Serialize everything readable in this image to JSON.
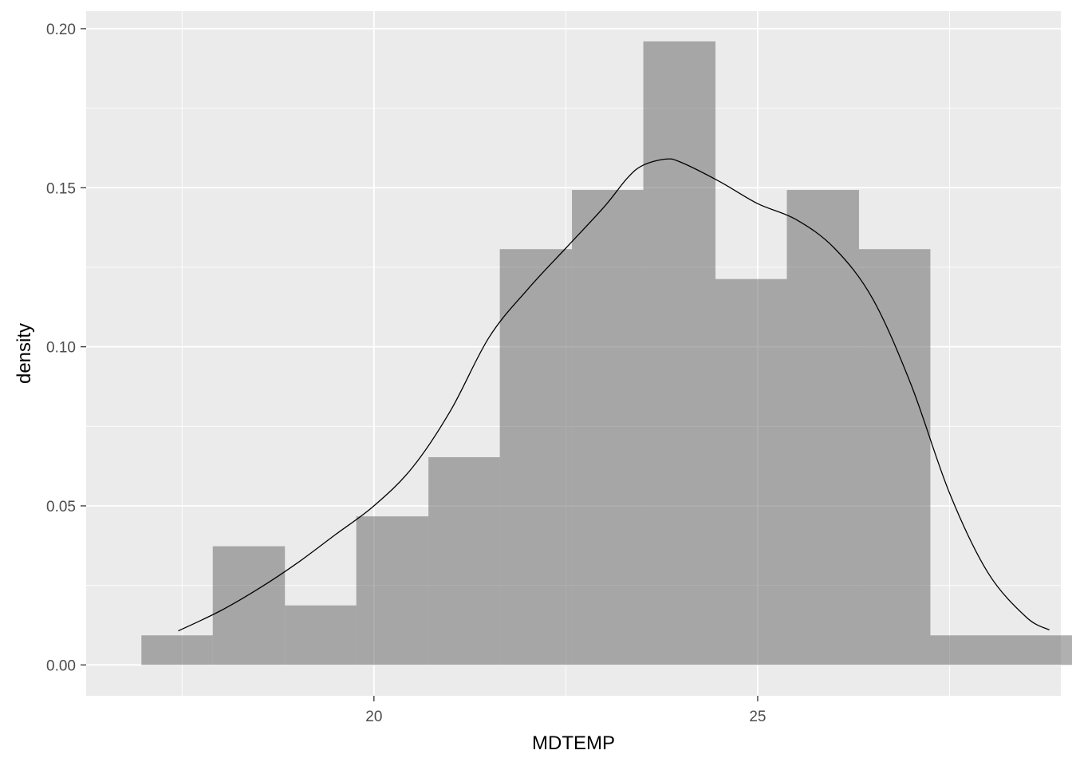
{
  "chart_data": {
    "type": "bar",
    "xlabel": "MDTEMP",
    "ylabel": "density",
    "xlim": [
      16.25,
      28.95
    ],
    "ylim": [
      -0.0097,
      0.2055
    ],
    "x_ticks": [
      20,
      25
    ],
    "x_minor_ticks": [
      17.5,
      22.5,
      27.5
    ],
    "y_ticks": [
      0.0,
      0.05,
      0.1,
      0.15,
      0.2
    ],
    "y_tick_labels": [
      "0.00",
      "0.05",
      "0.10",
      "0.15",
      "0.20"
    ],
    "grid": true,
    "legend": "none",
    "histogram": {
      "bins": [
        {
          "x0": 16.97,
          "x1": 17.9,
          "density": 0.0093
        },
        {
          "x0": 17.9,
          "x1": 18.84,
          "density": 0.0373
        },
        {
          "x0": 18.84,
          "x1": 19.77,
          "density": 0.0187
        },
        {
          "x0": 19.77,
          "x1": 20.71,
          "density": 0.0467
        },
        {
          "x0": 20.71,
          "x1": 21.64,
          "density": 0.0653
        },
        {
          "x0": 21.64,
          "x1": 22.58,
          "density": 0.1307
        },
        {
          "x0": 22.58,
          "x1": 23.51,
          "density": 0.1493
        },
        {
          "x0": 23.51,
          "x1": 24.45,
          "density": 0.196
        },
        {
          "x0": 24.45,
          "x1": 25.38,
          "density": 0.1213
        },
        {
          "x0": 25.38,
          "x1": 26.32,
          "density": 0.1493
        },
        {
          "x0": 26.32,
          "x1": 27.25,
          "density": 0.1307
        },
        {
          "x0": 27.25,
          "x1": 28.19,
          "density": 0.0093
        },
        {
          "x0": 28.19,
          "x1": 29.12,
          "density": 0.0093
        }
      ]
    },
    "density_curve": {
      "x": [
        17.45,
        18.0,
        18.5,
        19.0,
        19.5,
        20.0,
        20.5,
        21.0,
        21.5,
        22.0,
        22.5,
        23.0,
        23.3,
        23.5,
        23.8,
        24.0,
        24.5,
        25.0,
        25.5,
        26.0,
        26.5,
        27.0,
        27.5,
        28.0,
        28.5,
        28.8
      ],
      "y": [
        0.0107,
        0.017,
        0.024,
        0.032,
        0.041,
        0.05,
        0.062,
        0.08,
        0.103,
        0.118,
        0.131,
        0.144,
        0.153,
        0.157,
        0.159,
        0.158,
        0.152,
        0.145,
        0.14,
        0.131,
        0.115,
        0.088,
        0.054,
        0.029,
        0.015,
        0.011
      ]
    },
    "colors": {
      "panel": "#ebebeb",
      "grid": "#ffffff",
      "bar": "#a2a2a2",
      "line": "#000000"
    }
  }
}
